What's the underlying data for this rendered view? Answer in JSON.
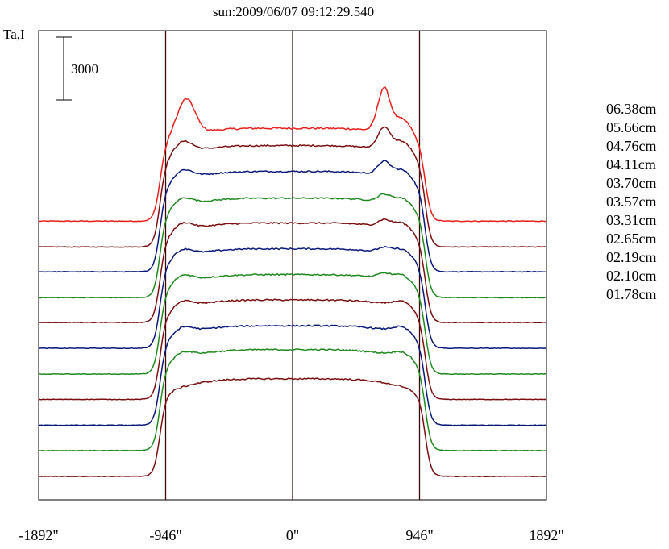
{
  "chart_data": {
    "type": "line",
    "title": "sun:2009/06/07 09:12:29.540",
    "ylabel": "Ta,I",
    "scale_bar_label": "3000",
    "scale_bar_value": 3000,
    "xlim": [
      -1892,
      1892
    ],
    "x_ticks": [
      {
        "value": -1892,
        "label": "-1892\""
      },
      {
        "value": -946,
        "label": "-946\""
      },
      {
        "value": 0,
        "label": "0\""
      },
      {
        "value": 946,
        "label": "946\""
      },
      {
        "value": 1892,
        "label": "1892\""
      }
    ],
    "vertical_markers": [
      -946,
      0,
      946
    ],
    "grid": false,
    "legend_position": "right",
    "series": [
      {
        "name": "06.38cm",
        "color": "#e8201c",
        "baseline": 0.406,
        "disk": 0.198,
        "limb": 0.06,
        "north_peak": 0.09,
        "south_peak": 0.045,
        "noise": 0.004
      },
      {
        "name": "05.66cm",
        "color": "#7a1010",
        "baseline": 0.461,
        "disk": 0.216,
        "limb": 0.045,
        "north_peak": 0.045,
        "south_peak": 0.0,
        "noise": 0.003
      },
      {
        "name": "04.76cm",
        "color": "#0a1a7a",
        "baseline": 0.514,
        "disk": 0.214,
        "limb": 0.035,
        "north_peak": 0.028,
        "south_peak": 0.0,
        "noise": 0.003
      },
      {
        "name": "04.11cm",
        "color": "#1e8a1e",
        "baseline": 0.569,
        "disk": 0.212,
        "limb": 0.03,
        "north_peak": 0.015,
        "south_peak": 0.0,
        "noise": 0.003
      },
      {
        "name": "03.70cm",
        "color": "#7a1010",
        "baseline": 0.622,
        "disk": 0.212,
        "limb": 0.03,
        "north_peak": 0.014,
        "south_peak": 0.0,
        "noise": 0.003
      },
      {
        "name": "03.57cm",
        "color": "#0a1a7a",
        "baseline": 0.677,
        "disk": 0.212,
        "limb": 0.028,
        "north_peak": 0.01,
        "south_peak": 0.0,
        "noise": 0.003
      },
      {
        "name": "03.31cm",
        "color": "#1e8a1e",
        "baseline": 0.732,
        "disk": 0.212,
        "limb": 0.028,
        "north_peak": 0.01,
        "south_peak": 0.0,
        "noise": 0.003
      },
      {
        "name": "02.65cm",
        "color": "#7a1010",
        "baseline": 0.786,
        "disk": 0.212,
        "limb": 0.025,
        "north_peak": 0.0,
        "south_peak": 0.0,
        "noise": 0.003
      },
      {
        "name": "02.19cm",
        "color": "#0a1a7a",
        "baseline": 0.841,
        "disk": 0.212,
        "limb": 0.025,
        "north_peak": 0.0,
        "south_peak": 0.0,
        "noise": 0.003
      },
      {
        "name": "02.10cm",
        "color": "#1e8a1e",
        "baseline": 0.895,
        "disk": 0.215,
        "limb": 0.022,
        "north_peak": 0.0,
        "south_peak": 0.0,
        "noise": 0.003
      },
      {
        "name": "01.78cm",
        "color": "#7a1010",
        "baseline": 0.95,
        "disk": 0.208,
        "limb": 0.0,
        "north_peak": 0.0,
        "south_peak": 0.0,
        "noise": 0.003
      }
    ]
  }
}
